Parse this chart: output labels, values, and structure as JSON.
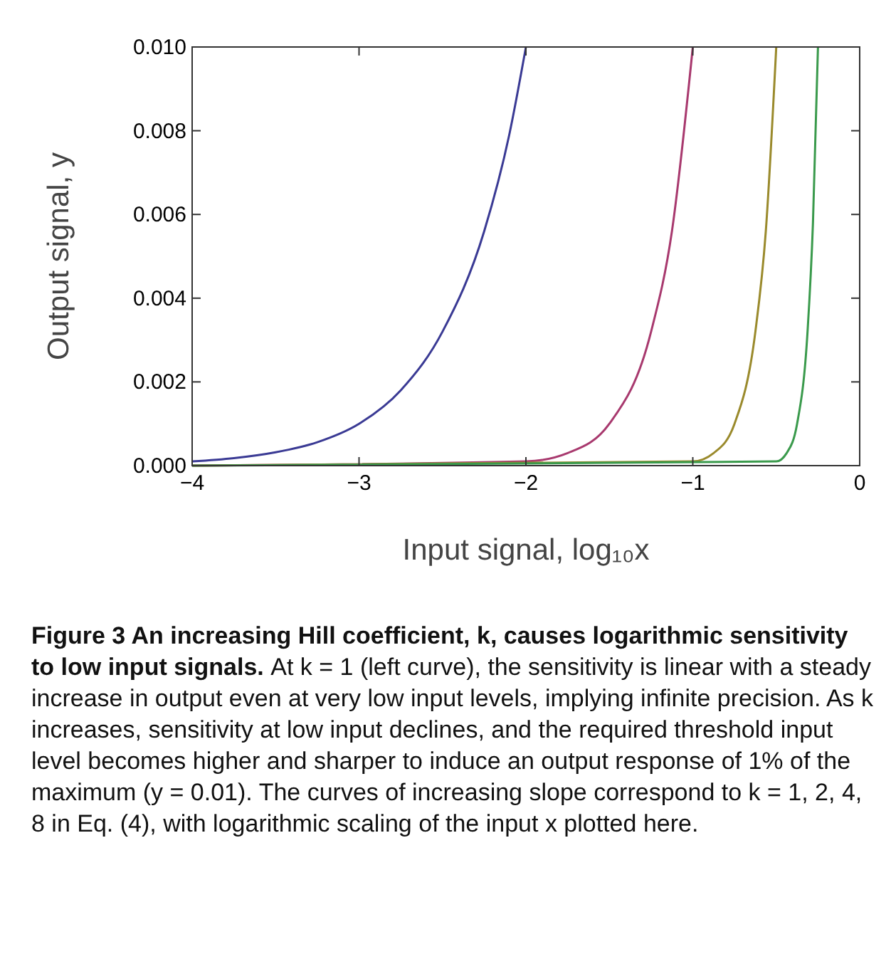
{
  "chart_data": {
    "type": "line",
    "xlabel": "Input signal, log₁₀x",
    "ylabel": "Output signal, y",
    "xlim": [
      -4,
      0
    ],
    "ylim": [
      0,
      0.01
    ],
    "xticks": [
      {
        "value": -4,
        "label": "−4"
      },
      {
        "value": -3,
        "label": "−3"
      },
      {
        "value": -2,
        "label": "−2"
      },
      {
        "value": -1,
        "label": "−1"
      },
      0
    ],
    "yticks": [
      {
        "value": 0,
        "label": "0.000"
      },
      {
        "value": 0.002,
        "label": "0.002"
      },
      {
        "value": 0.004,
        "label": "0.004"
      },
      {
        "value": 0.006,
        "label": "0.006"
      },
      {
        "value": 0.008,
        "label": "0.008"
      },
      {
        "value": 0.01,
        "label": "0.010"
      }
    ],
    "grid": false,
    "marker": "none",
    "line_style": "solid",
    "series": [
      {
        "color": "#3a3a94",
        "x": [
          -4,
          -3.75,
          -3.5,
          -3.25,
          -3,
          -2.75,
          -2.5,
          -2.25,
          -2.1,
          -2
        ],
        "values": [
          0.0001,
          0.00018,
          0.00032,
          0.00056,
          0.001,
          0.0018,
          0.0032,
          0.0056,
          0.0079,
          0.01
        ]
      },
      {
        "color": "#a8396e",
        "x": [
          -4,
          -2,
          -1.75,
          -1.5,
          -1.25,
          -1.125,
          -1
        ],
        "values": [
          0,
          0.0001,
          0.0003,
          0.001,
          0.0032,
          0.0056,
          0.01
        ]
      },
      {
        "color": "#9a8a2c",
        "x": [
          -4,
          -1,
          -0.875,
          -0.75,
          -0.625,
          -0.5625,
          -0.5
        ],
        "values": [
          0,
          0.0001,
          0.0003,
          0.001,
          0.0032,
          0.0056,
          0.01
        ]
      },
      {
        "color": "#3a9a4c",
        "x": [
          -4,
          -0.5,
          -0.4375,
          -0.375,
          -0.3125,
          -0.28,
          -0.25
        ],
        "values": [
          0,
          0.0001,
          0.0003,
          0.001,
          0.0032,
          0.0058,
          0.01
        ]
      }
    ],
    "annotations": [
      "Figure 3 An increasing Hill coefficient, k, causes logarithmic sensitivity to low input signals.",
      "At k = 1 (left curve), the sensitivity is linear with a steady increase in output even at very low input levels, implying infinite precision. As k increases, sensitivity at low input declines, and the required threshold input level becomes higher and sharper to induce an output response of 1% of the maximum (y = 0.01). The curves of increasing slope correspond to k = 1, 2, 4, 8 in Eq. (4), with logarithmic scaling of the input x plotted here."
    ]
  }
}
